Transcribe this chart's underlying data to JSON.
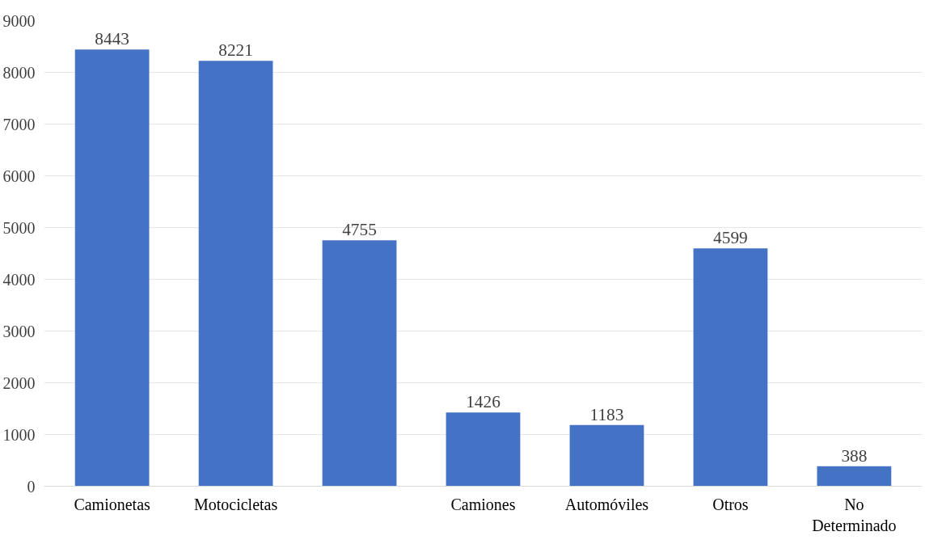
{
  "chart_data": {
    "type": "bar",
    "categories": [
      "Camionetas",
      "Motocicletas",
      null,
      "Camiones",
      "Automóviles",
      "Otros",
      "No\nDeterminado"
    ],
    "values": [
      8443,
      8221,
      4755,
      1426,
      1183,
      4599,
      388
    ],
    "color": "#4472c4",
    "ylim": [
      0,
      9000
    ],
    "yticks": [
      0,
      1000,
      2000,
      3000,
      4000,
      5000,
      6000,
      7000,
      8000,
      9000
    ],
    "grid": "y",
    "data_labels": true
  }
}
